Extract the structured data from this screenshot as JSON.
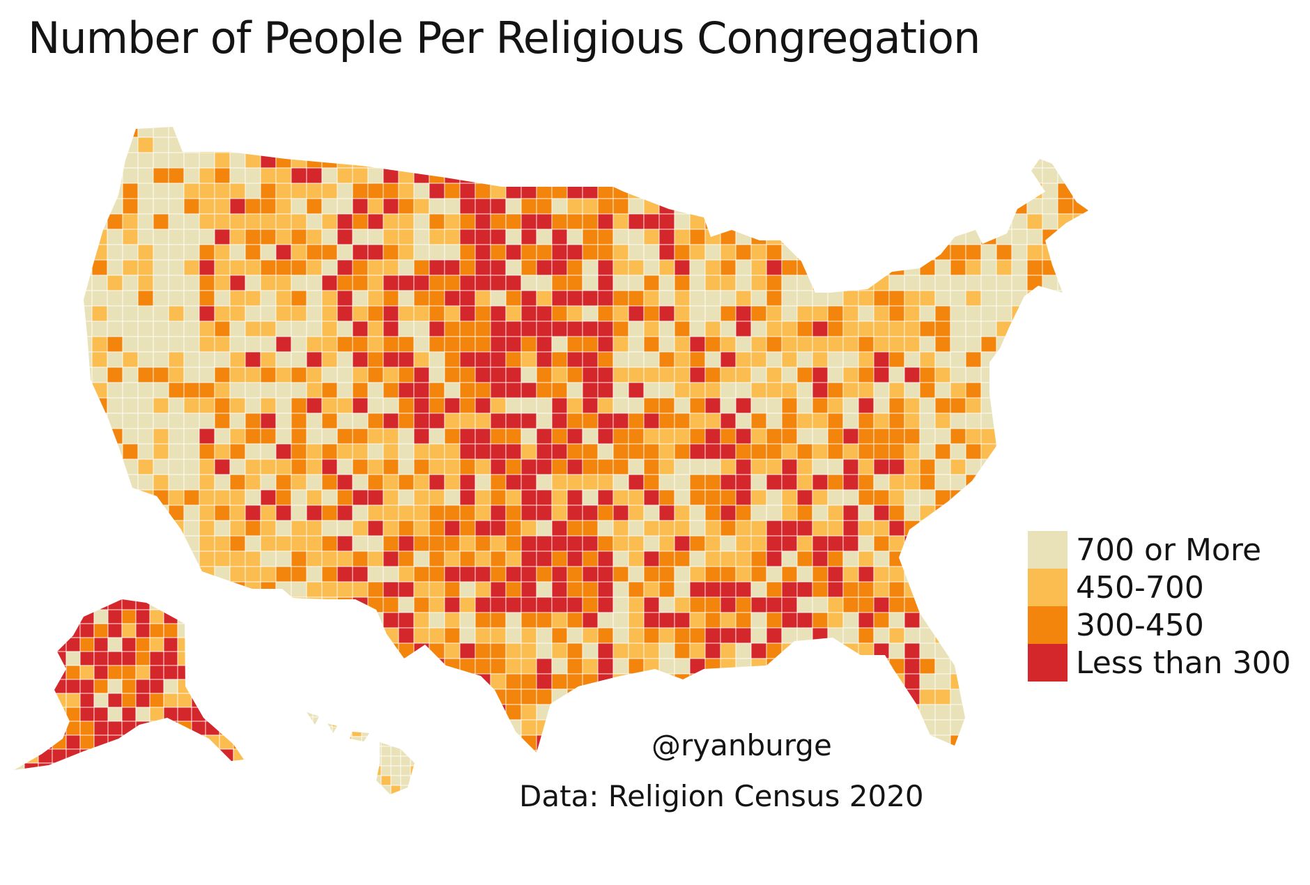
{
  "title": "Number of People Per Religious Congregation",
  "legend": {
    "items": [
      {
        "label": "700 or More",
        "color": "#e9e2b8"
      },
      {
        "label": "450-700",
        "color": "#fbbd4f"
      },
      {
        "label": "300-450",
        "color": "#f4850c"
      },
      {
        "label": "Less than 300",
        "color": "#d4272b"
      }
    ]
  },
  "credits": {
    "author": "@ryanburge",
    "source": "Data: Religion Census 2020"
  },
  "colors": {
    "background": "#ffffff",
    "border": "#ffffff",
    "text": "#141414"
  }
}
